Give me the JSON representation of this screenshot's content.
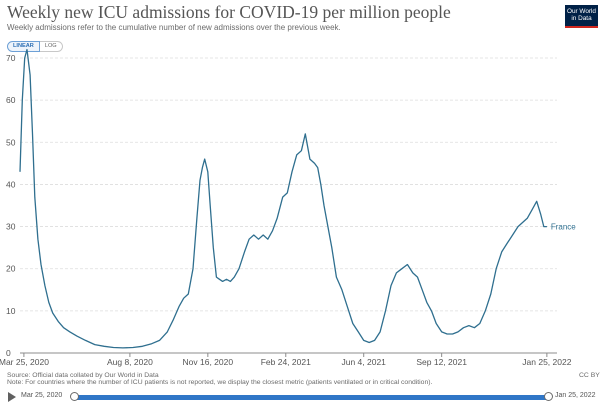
{
  "title": "Weekly new ICU admissions for COVID-19 per million people",
  "subtitle": "Weekly admissions refer to the cumulative number of new admissions over the previous week.",
  "logo": {
    "line1": "Our World",
    "line2": "in Data"
  },
  "scale_toggle": {
    "linear": "LINEAR",
    "log": "LOG",
    "selected": "LINEAR"
  },
  "footer": {
    "source": "Source: Official data collated by Our World in Data",
    "note": "Note: For countries where the number of ICU patients is not reported, we display the closest metric (patients ventilated or in critical condition).",
    "license": "CC BY"
  },
  "timeline": {
    "start_label": "Mar 25, 2020",
    "end_label": "Jan 25, 2022"
  },
  "colors": {
    "series": "#2f6f8f",
    "grid": "#dddddd",
    "axis": "#555555",
    "baseline": "#8c8c8c"
  },
  "chart_data": {
    "type": "line",
    "title": "Weekly new ICU admissions for COVID-19 per million people",
    "subtitle": "Weekly admissions refer to the cumulative number of new admissions over the previous week.",
    "xlabel": "",
    "ylabel": "",
    "ylim": [
      0,
      70
    ],
    "xlim": [
      "2020-03-20",
      "2022-02-07"
    ],
    "yticks": [
      0,
      10,
      20,
      30,
      40,
      50,
      60,
      70
    ],
    "xticks": [
      {
        "date": "2020-03-25",
        "label": "Mar 25, 2020"
      },
      {
        "date": "2020-08-08",
        "label": "Aug 8, 2020"
      },
      {
        "date": "2020-11-16",
        "label": "Nov 16, 2020"
      },
      {
        "date": "2021-02-24",
        "label": "Feb 24, 2021"
      },
      {
        "date": "2021-06-04",
        "label": "Jun 4, 2021"
      },
      {
        "date": "2021-09-12",
        "label": "Sep 12, 2021"
      },
      {
        "date": "2022-01-25",
        "label": "Jan 25, 2022"
      }
    ],
    "grid": true,
    "legend": "end-of-line label",
    "series": [
      {
        "name": "France",
        "x": [
          "2020-03-20",
          "2020-03-23",
          "2020-03-26",
          "2020-03-29",
          "2020-04-02",
          "2020-04-05",
          "2020-04-08",
          "2020-04-12",
          "2020-04-16",
          "2020-04-21",
          "2020-04-26",
          "2020-05-01",
          "2020-05-08",
          "2020-05-15",
          "2020-05-23",
          "2020-06-01",
          "2020-06-12",
          "2020-06-24",
          "2020-07-06",
          "2020-07-18",
          "2020-07-30",
          "2020-08-12",
          "2020-08-24",
          "2020-09-05",
          "2020-09-15",
          "2020-09-25",
          "2020-10-03",
          "2020-10-10",
          "2020-10-16",
          "2020-10-22",
          "2020-10-28",
          "2020-11-02",
          "2020-11-06",
          "2020-11-09",
          "2020-11-12",
          "2020-11-16",
          "2020-11-19",
          "2020-11-23",
          "2020-11-27",
          "2020-12-01",
          "2020-12-05",
          "2020-12-10",
          "2020-12-15",
          "2020-12-20",
          "2020-12-26",
          "2021-01-02",
          "2021-01-08",
          "2021-01-14",
          "2021-01-20",
          "2021-01-26",
          "2021-02-01",
          "2021-02-07",
          "2021-02-13",
          "2021-02-20",
          "2021-02-26",
          "2021-03-04",
          "2021-03-10",
          "2021-03-16",
          "2021-03-21",
          "2021-03-27",
          "2021-04-02",
          "2021-04-06",
          "2021-04-10",
          "2021-04-14",
          "2021-04-19",
          "2021-04-24",
          "2021-04-30",
          "2021-05-07",
          "2021-05-14",
          "2021-05-21",
          "2021-05-28",
          "2021-06-04",
          "2021-06-11",
          "2021-06-18",
          "2021-06-25",
          "2021-07-02",
          "2021-07-09",
          "2021-07-16",
          "2021-07-23",
          "2021-07-30",
          "2021-08-06",
          "2021-08-12",
          "2021-08-18",
          "2021-08-24",
          "2021-08-30",
          "2021-09-05",
          "2021-09-12",
          "2021-09-19",
          "2021-09-26",
          "2021-10-03",
          "2021-10-10",
          "2021-10-17",
          "2021-10-24",
          "2021-10-31",
          "2021-11-07",
          "2021-11-14",
          "2021-11-21",
          "2021-11-28",
          "2021-12-05",
          "2021-12-12",
          "2021-12-19",
          "2021-12-25",
          "2021-12-31",
          "2022-01-06",
          "2022-01-12",
          "2022-01-17",
          "2022-01-21",
          "2022-01-25"
        ],
        "y": [
          43,
          60,
          70,
          72,
          66,
          52,
          37,
          27,
          21,
          16,
          12,
          9.5,
          7.5,
          6,
          5,
          4,
          3,
          2,
          1.6,
          1.3,
          1.2,
          1.3,
          1.6,
          2.2,
          3,
          5,
          8,
          11,
          13,
          14,
          20,
          32,
          41,
          44,
          46,
          43,
          35,
          25,
          18,
          17.5,
          17,
          17.5,
          17,
          18,
          20,
          24,
          27,
          28,
          27,
          28,
          27,
          29,
          32,
          37,
          38,
          43,
          47,
          48,
          52,
          46,
          45,
          44,
          40,
          35,
          30,
          25,
          18,
          15,
          11,
          7,
          5,
          3,
          2.5,
          3,
          5,
          10,
          16,
          19,
          20,
          21,
          19,
          18,
          15,
          12,
          10,
          7,
          5,
          4.5,
          4.5,
          5,
          6,
          6.5,
          6,
          7,
          10,
          14,
          20,
          24,
          26,
          28,
          30,
          31,
          32,
          34,
          36,
          33,
          30,
          30
        ]
      }
    ]
  }
}
